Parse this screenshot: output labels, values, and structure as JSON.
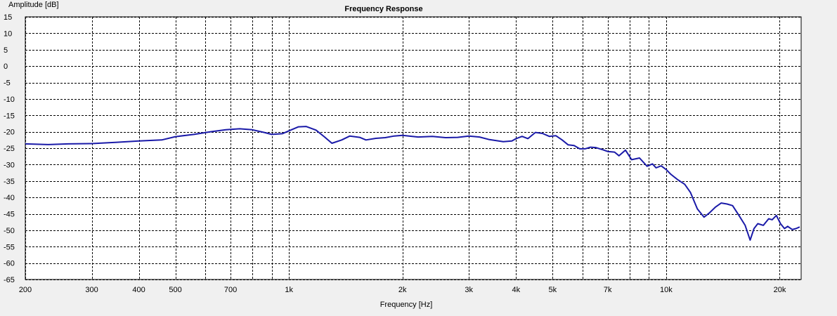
{
  "chart_data": {
    "type": "line",
    "title": "Frequency Response",
    "xlabel": "Frequency [Hz]",
    "ylabel": "Amplitude [dB]",
    "x_scale": "log",
    "xlim": [
      200,
      22800
    ],
    "ylim": [
      -65,
      15
    ],
    "grid": true,
    "y_ticks": [
      15,
      10,
      5,
      0,
      -5,
      -10,
      -15,
      -20,
      -25,
      -30,
      -35,
      -40,
      -45,
      -50,
      -55,
      -60,
      -65
    ],
    "x_ticks": [
      {
        "value": 200,
        "label": "200"
      },
      {
        "value": 300,
        "label": "300"
      },
      {
        "value": 400,
        "label": "400"
      },
      {
        "value": 500,
        "label": "500"
      },
      {
        "value": 700,
        "label": "700"
      },
      {
        "value": 1000,
        "label": "1k"
      },
      {
        "value": 2000,
        "label": "2k"
      },
      {
        "value": 3000,
        "label": "3k"
      },
      {
        "value": 4000,
        "label": "4k"
      },
      {
        "value": 5000,
        "label": "5k"
      },
      {
        "value": 7000,
        "label": "7k"
      },
      {
        "value": 10000,
        "label": "10k"
      },
      {
        "value": 20000,
        "label": "20k"
      }
    ],
    "x_grid": [
      200,
      300,
      400,
      500,
      600,
      700,
      800,
      900,
      1000,
      2000,
      3000,
      4000,
      5000,
      6000,
      7000,
      8000,
      9000,
      10000,
      20000
    ],
    "series": [
      {
        "color": "#1a1aa8",
        "x": [
          200,
          230,
          260,
          300,
          350,
          400,
          460,
          500,
          560,
          620,
          680,
          740,
          800,
          860,
          900,
          960,
          1010,
          1060,
          1110,
          1180,
          1240,
          1300,
          1380,
          1450,
          1540,
          1600,
          1700,
          1800,
          1900,
          2000,
          2200,
          2400,
          2600,
          2800,
          3000,
          3200,
          3400,
          3700,
          3900,
          4000,
          4150,
          4300,
          4500,
          4700,
          4900,
          5100,
          5300,
          5500,
          5700,
          5900,
          6100,
          6300,
          6500,
          6800,
          7000,
          7300,
          7500,
          7800,
          8100,
          8500,
          8900,
          9200,
          9400,
          9700,
          10000,
          10300,
          10700,
          11200,
          11600,
          12100,
          12600,
          13000,
          13500,
          14000,
          14500,
          15000,
          15600,
          16200,
          16700,
          17100,
          17500,
          18100,
          18700,
          19100,
          19600,
          20100,
          20600,
          21000,
          21600,
          22100,
          22600
        ],
        "y": [
          -23.7,
          -23.9,
          -23.7,
          -23.6,
          -23.2,
          -22.8,
          -22.5,
          -21.5,
          -20.8,
          -20.0,
          -19.4,
          -19.1,
          -19.4,
          -20.2,
          -20.8,
          -20.6,
          -19.5,
          -18.5,
          -18.4,
          -19.5,
          -21.5,
          -23.5,
          -22.5,
          -21.3,
          -21.7,
          -22.5,
          -22.0,
          -21.8,
          -21.3,
          -21.1,
          -21.6,
          -21.4,
          -21.8,
          -21.7,
          -21.3,
          -21.6,
          -22.4,
          -23.0,
          -22.8,
          -22.1,
          -21.4,
          -22.1,
          -20.2,
          -20.5,
          -21.4,
          -21.2,
          -22.5,
          -24.0,
          -24.2,
          -25.2,
          -25.2,
          -24.7,
          -24.8,
          -25.5,
          -26.0,
          -26.2,
          -27.3,
          -25.6,
          -28.5,
          -28.0,
          -30.5,
          -29.8,
          -31.0,
          -30.4,
          -31.5,
          -33.0,
          -34.5,
          -36.0,
          -38.5,
          -43.5,
          -46.0,
          -44.8,
          -43.0,
          -41.7,
          -42.0,
          -42.5,
          -45.5,
          -48.5,
          -53.0,
          -49.5,
          -48.0,
          -48.5,
          -46.5,
          -46.8,
          -45.5,
          -48.0,
          -49.5,
          -48.8,
          -49.8,
          -49.5,
          -49.0
        ]
      }
    ]
  }
}
